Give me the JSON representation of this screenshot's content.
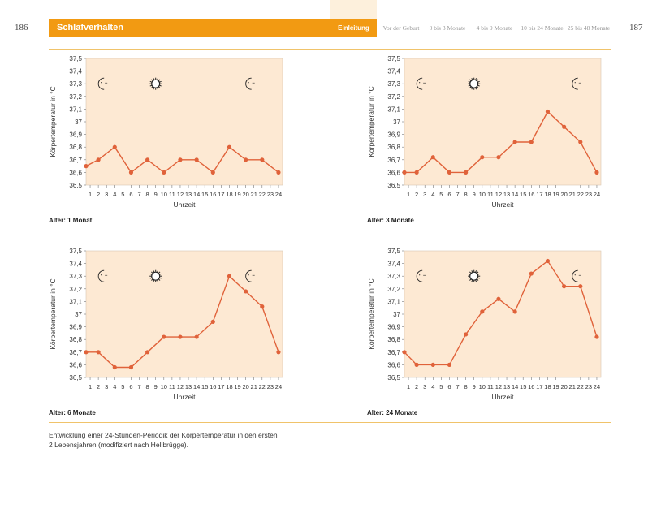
{
  "header": {
    "page_left": "186",
    "page_right": "187",
    "section_title": "Schlafverhalten",
    "tabs": [
      {
        "label": "Einleitung",
        "active": true
      },
      {
        "label": "Vor der Geburt",
        "active": false
      },
      {
        "label": "0 bis 3 Monate",
        "active": false
      },
      {
        "label": "4 bis 9 Monate",
        "active": false
      },
      {
        "label": "10 bis 24 Monate",
        "active": false
      },
      {
        "label": "25 bis 48 Monate",
        "active": false
      }
    ]
  },
  "colors": {
    "accent": "#f29a12",
    "plot_bg": "#fde9d3",
    "line": "#e0623a",
    "rule": "#f0c36a"
  },
  "chart_data": [
    {
      "type": "line",
      "caption": "Alter: 1 Monat",
      "xlabel": "Uhrzeit",
      "ylabel": "Körpertemperatur in °C",
      "x": [
        1,
        2,
        3,
        4,
        5,
        6,
        7,
        8,
        9,
        10,
        11,
        12,
        13,
        14,
        15,
        16,
        17,
        18,
        19,
        20,
        21,
        22,
        23,
        24
      ],
      "ylim": [
        36.5,
        37.5
      ],
      "yticks": [
        "36,5",
        "36,6",
        "36,7",
        "36,8",
        "36,9",
        "37",
        "37,1",
        "37,2",
        "37,3",
        "37,4",
        "37,5"
      ],
      "points": [
        [
          0.5,
          36.65
        ],
        [
          2,
          36.7
        ],
        [
          4,
          36.8
        ],
        [
          6,
          36.6
        ],
        [
          8,
          36.7
        ],
        [
          10,
          36.6
        ],
        [
          12,
          36.7
        ],
        [
          14,
          36.7
        ],
        [
          16,
          36.6
        ],
        [
          18,
          36.8
        ],
        [
          20,
          36.7
        ],
        [
          22,
          36.7
        ],
        [
          24,
          36.6
        ]
      ],
      "icons": [
        {
          "name": "moon-icon",
          "x": 2.5
        },
        {
          "name": "sun-icon",
          "x": 9
        },
        {
          "name": "moon-icon",
          "x": 20.5
        }
      ]
    },
    {
      "type": "line",
      "caption": "Alter: 3 Monate",
      "xlabel": "Uhrzeit",
      "ylabel": "Körpertemperatur in °C",
      "x": [
        1,
        2,
        3,
        4,
        5,
        6,
        7,
        8,
        9,
        10,
        11,
        12,
        13,
        14,
        15,
        16,
        17,
        18,
        19,
        20,
        21,
        22,
        23,
        24
      ],
      "ylim": [
        36.5,
        37.5
      ],
      "yticks": [
        "36,5",
        "36,6",
        "36,7",
        "36,8",
        "36,9",
        "37",
        "37,1",
        "37,2",
        "37,3",
        "37,4",
        "37,5"
      ],
      "points": [
        [
          0.5,
          36.6
        ],
        [
          2,
          36.6
        ],
        [
          4,
          36.72
        ],
        [
          6,
          36.6
        ],
        [
          8,
          36.6
        ],
        [
          10,
          36.72
        ],
        [
          12,
          36.72
        ],
        [
          14,
          36.84
        ],
        [
          16,
          36.84
        ],
        [
          18,
          37.08
        ],
        [
          20,
          36.96
        ],
        [
          22,
          36.84
        ],
        [
          24,
          36.6
        ]
      ],
      "icons": [
        {
          "name": "moon-icon",
          "x": 2.5
        },
        {
          "name": "sun-icon",
          "x": 9
        },
        {
          "name": "moon-icon",
          "x": 21.5
        }
      ]
    },
    {
      "type": "line",
      "caption": "Alter: 6 Monate",
      "xlabel": "Uhrzeit",
      "ylabel": "Körpertemperatur in °C",
      "x": [
        1,
        2,
        3,
        4,
        5,
        6,
        7,
        8,
        9,
        10,
        11,
        12,
        13,
        14,
        15,
        16,
        17,
        18,
        19,
        20,
        21,
        22,
        23,
        24
      ],
      "ylim": [
        36.5,
        37.5
      ],
      "yticks": [
        "36,5",
        "36,6",
        "36,7",
        "36,8",
        "36,9",
        "37",
        "37,1",
        "37,2",
        "37,3",
        "37,4",
        "37,5"
      ],
      "points": [
        [
          0.5,
          36.7
        ],
        [
          2,
          36.7
        ],
        [
          4,
          36.58
        ],
        [
          6,
          36.58
        ],
        [
          8,
          36.7
        ],
        [
          10,
          36.82
        ],
        [
          12,
          36.82
        ],
        [
          14,
          36.82
        ],
        [
          16,
          36.94
        ],
        [
          18,
          37.3
        ],
        [
          20,
          37.18
        ],
        [
          22,
          37.06
        ],
        [
          24,
          36.7
        ]
      ],
      "icons": [
        {
          "name": "moon-icon",
          "x": 2.5
        },
        {
          "name": "sun-icon",
          "x": 9
        },
        {
          "name": "moon-icon",
          "x": 20.5
        }
      ]
    },
    {
      "type": "line",
      "caption": "Alter: 24 Monate",
      "xlabel": "Uhrzeit",
      "ylabel": "Körpertemperatur in °C",
      "x": [
        1,
        2,
        3,
        4,
        5,
        6,
        7,
        8,
        9,
        10,
        11,
        12,
        13,
        14,
        15,
        16,
        17,
        18,
        19,
        20,
        21,
        22,
        23,
        24
      ],
      "ylim": [
        36.5,
        37.5
      ],
      "yticks": [
        "36,5",
        "36,6",
        "36,7",
        "36,8",
        "36,9",
        "37",
        "37,1",
        "37,2",
        "37,3",
        "37,4",
        "37,5"
      ],
      "points": [
        [
          0.5,
          36.7
        ],
        [
          2,
          36.6
        ],
        [
          4,
          36.6
        ],
        [
          6,
          36.6
        ],
        [
          8,
          36.84
        ],
        [
          10,
          37.02
        ],
        [
          12,
          37.12
        ],
        [
          14,
          37.02
        ],
        [
          16,
          37.32
        ],
        [
          18,
          37.42
        ],
        [
          20,
          37.22
        ],
        [
          22,
          37.22
        ],
        [
          24,
          36.82
        ]
      ],
      "icons": [
        {
          "name": "moon-icon",
          "x": 2.5
        },
        {
          "name": "sun-icon",
          "x": 9
        },
        {
          "name": "moon-icon",
          "x": 21.5
        }
      ]
    }
  ],
  "footnote": {
    "line1": "Entwicklung einer 24-Stunden-Periodik der Körpertemperatur in den ersten",
    "line2": "2 Lebensjahren (modifiziert nach Hellbrügge)."
  }
}
